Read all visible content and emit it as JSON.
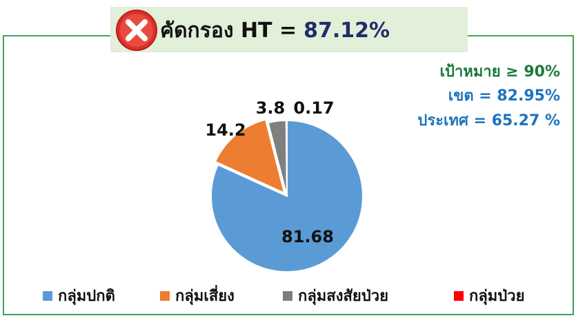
{
  "chart_data": {
    "type": "pie",
    "title": "คัดกรอง HT =",
    "title_value": "87.12%",
    "annotations": [
      "เป้าหมาย ≥ 90%",
      "เขต = 82.95%",
      "ประเทศ = 65.27 %"
    ],
    "categories": [
      "กลุ่มปกติ",
      "กลุ่มเสี่ยง",
      "กลุ่มสงสัยป่วย",
      "กลุ่มป่วย"
    ],
    "values": [
      81.68,
      14.2,
      3.8,
      0.17
    ],
    "colors": [
      "#5b9bd5",
      "#ed7d31",
      "#7f7f7f",
      "#ff0000"
    ],
    "legend": "bottom"
  }
}
